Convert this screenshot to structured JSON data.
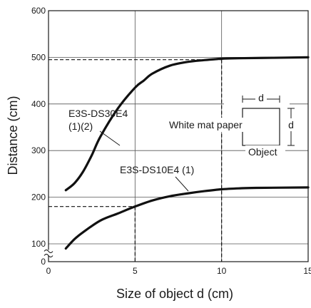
{
  "chart_data": {
    "type": "line",
    "title": "",
    "xlabel": "Size of object d (cm)",
    "ylabel": "Distance  (cm)",
    "xlim": [
      0,
      15
    ],
    "ylim": [
      100,
      600
    ],
    "x_ticks": [
      "0",
      "5",
      "10",
      "15"
    ],
    "y_ticks": [
      "100",
      "200",
      "300",
      "400",
      "500",
      "600"
    ],
    "grid": true,
    "axis_break": true,
    "series": [
      {
        "name": "E3S-DS30E4\n(1)(2)",
        "color": "#111111",
        "points": [
          [
            1,
            215
          ],
          [
            1.5,
            230
          ],
          [
            2,
            255
          ],
          [
            2.5,
            290
          ],
          [
            3,
            330
          ],
          [
            4,
            390
          ],
          [
            5,
            435
          ],
          [
            5.5,
            450
          ],
          [
            6,
            465
          ],
          [
            7,
            482
          ],
          [
            8,
            490
          ],
          [
            9,
            494
          ],
          [
            10,
            497
          ],
          [
            11,
            498
          ],
          [
            13,
            499
          ],
          [
            15,
            500
          ]
        ]
      },
      {
        "name": "E3S-DS10E4 (1)",
        "color": "#111111",
        "points": [
          [
            1,
            90
          ],
          [
            1.5,
            110
          ],
          [
            2,
            125
          ],
          [
            3,
            150
          ],
          [
            4,
            165
          ],
          [
            5,
            180
          ],
          [
            6,
            193
          ],
          [
            7,
            202
          ],
          [
            8,
            208
          ],
          [
            9,
            213
          ],
          [
            10,
            217
          ],
          [
            11,
            219
          ],
          [
            12,
            220
          ],
          [
            15,
            221
          ]
        ]
      }
    ],
    "reference_lines": [
      {
        "y": 495,
        "x": 10
      },
      {
        "y": 180,
        "x": 5
      }
    ],
    "annotations": {
      "series1_label_line1": "E3S-DS30E4",
      "series1_label_line2": "(1)(2)",
      "series2_label": "E3S-DS10E4 (1)",
      "inset_dim_top": "d",
      "inset_dim_right": "d",
      "inset_label": "White mat paper",
      "inset_caption": "Object"
    }
  }
}
